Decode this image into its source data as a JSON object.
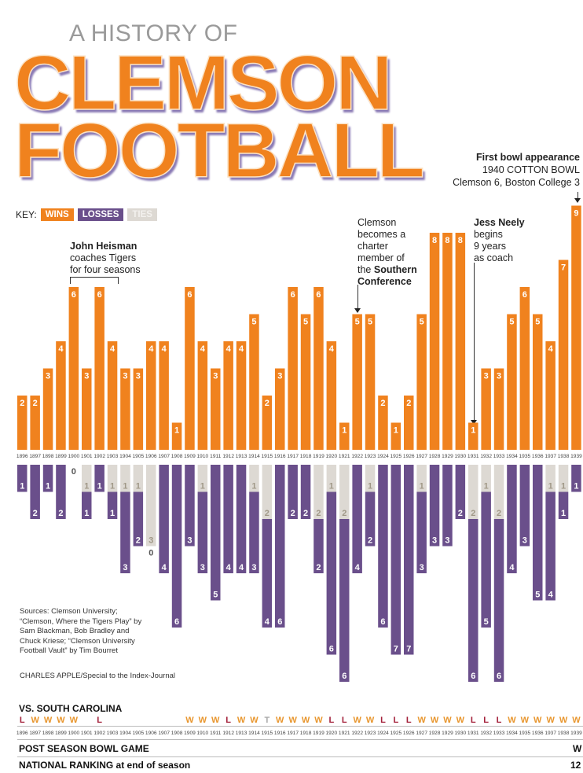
{
  "header": {
    "kicker": "A HISTORY OF",
    "title_line1": "CLEMSON",
    "title_line2": "FOOTBALL"
  },
  "key": {
    "label": "KEY:",
    "wins": "WINS",
    "losses": "LOSSES",
    "ties": "TIES"
  },
  "colors": {
    "wins": "#f0821e",
    "losses": "#6a4f8b",
    "ties": "#ddd9d3",
    "sc_win": "#e8962e",
    "sc_loss": "#a3203a",
    "sc_tie": "#aaaaaa"
  },
  "annotations": {
    "heisman": {
      "bold": "John Heisman",
      "line2": "coaches Tigers",
      "line3": "for four seasons"
    },
    "socon": {
      "line1": "Clemson",
      "line2": "becomes a",
      "line3": "charter",
      "line4": "member of",
      "line5_pre": "the ",
      "line5_bold": "Southern",
      "line6_bold": "Conference"
    },
    "neely": {
      "bold": "Jess Neely",
      "line2": "begins",
      "line3": "9 years",
      "line4": "as coach"
    },
    "bowl": {
      "bold": "First bowl appearance",
      "line2": "1940 COTTON BOWL",
      "line3": "Clemson 6,  Boston College 3"
    }
  },
  "sources": {
    "line1": "Sources: Clemson University;",
    "line2": "“Clemson, Where the Tigers Play” by",
    "line3": "Sam Blackman, Bob Bradley and",
    "line4": "Chuck Kriese; “Clemson University",
    "line5": "Football Vault” by Tim Bourret",
    "credit": "CHARLES APPLE/Special to the Index-Journal"
  },
  "tables": {
    "vs_sc_label": "VS. SOUTH CAROLINA",
    "bowl_label": "POST SEASON BOWL GAME",
    "ranking_label": "NATIONAL RANKING at end of season",
    "bowl_1939": "W",
    "ranking_1939": "12"
  },
  "chart_data": {
    "type": "bar",
    "title": "A History of Clemson Football",
    "xlabel": "",
    "ylabel": "",
    "categories": [
      "1896",
      "1897",
      "1898",
      "1899",
      "1900",
      "1901",
      "1902",
      "1903",
      "1904",
      "1905",
      "1906",
      "1907",
      "1908",
      "1909",
      "1910",
      "1911",
      "1912",
      "1913",
      "1914",
      "1915",
      "1916",
      "1917",
      "1918",
      "1919",
      "1920",
      "1921",
      "1922",
      "1923",
      "1924",
      "1925",
      "1926",
      "1927",
      "1928",
      "1929",
      "1930",
      "1931",
      "1932",
      "1933",
      "1934",
      "1935",
      "1936",
      "1937",
      "1938",
      "1939"
    ],
    "series": [
      {
        "name": "Wins",
        "values": [
          2,
          2,
          3,
          4,
          6,
          3,
          6,
          4,
          3,
          3,
          4,
          4,
          1,
          6,
          4,
          3,
          4,
          4,
          5,
          2,
          3,
          6,
          5,
          6,
          4,
          1,
          5,
          5,
          2,
          1,
          2,
          5,
          8,
          8,
          8,
          1,
          3,
          3,
          5,
          6,
          5,
          4,
          7,
          9
        ]
      },
      {
        "name": "Losses",
        "values": [
          1,
          2,
          1,
          2,
          0,
          1,
          1,
          1,
          3,
          2,
          0,
          4,
          6,
          3,
          3,
          5,
          4,
          4,
          3,
          4,
          6,
          2,
          2,
          2,
          6,
          6,
          4,
          2,
          6,
          7,
          7,
          3,
          3,
          3,
          2,
          6,
          5,
          6,
          4,
          3,
          5,
          4,
          1,
          1
        ]
      },
      {
        "name": "Ties",
        "values": [
          0,
          0,
          0,
          0,
          0,
          1,
          0,
          1,
          1,
          1,
          3,
          0,
          0,
          0,
          1,
          0,
          0,
          0,
          1,
          2,
          0,
          0,
          0,
          2,
          1,
          2,
          0,
          1,
          0,
          0,
          0,
          1,
          0,
          0,
          0,
          2,
          1,
          2,
          0,
          0,
          0,
          1,
          1,
          0
        ]
      }
    ],
    "vs_south_carolina": [
      "L",
      "W",
      "W",
      "W",
      "W",
      "",
      "L",
      "",
      "",
      "",
      "",
      "",
      "",
      "W",
      "W",
      "W",
      "L",
      "W",
      "W",
      "T",
      "W",
      "W",
      "W",
      "W",
      "L",
      "L",
      "W",
      "W",
      "L",
      "L",
      "L",
      "W",
      "W",
      "W",
      "W",
      "L",
      "L",
      "L",
      "W",
      "W",
      "W",
      "W",
      "W",
      "W"
    ],
    "ylim_wins": [
      0,
      9
    ],
    "ylim_losses_ties": [
      0,
      8
    ],
    "legend": "top-left",
    "grid": false
  }
}
